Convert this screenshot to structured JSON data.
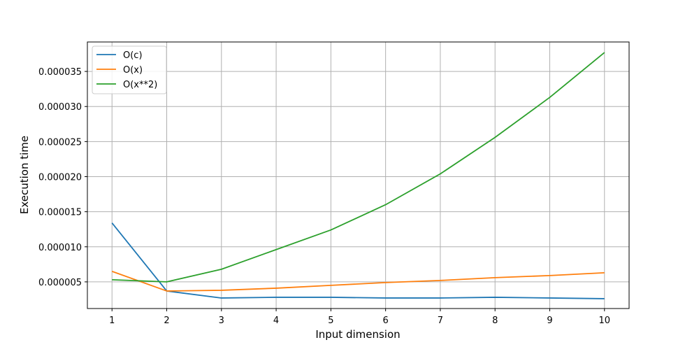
{
  "chart_data": {
    "type": "line",
    "title": "",
    "xlabel": "Input dimension",
    "ylabel": "Execution time",
    "x": [
      1,
      2,
      3,
      4,
      5,
      6,
      7,
      8,
      9,
      10
    ],
    "xticks": [
      "1",
      "2",
      "3",
      "4",
      "5",
      "6",
      "7",
      "8",
      "9",
      "10"
    ],
    "yticks": [
      5e-06,
      1e-05,
      1.5e-05,
      2e-05,
      2.5e-05,
      3e-05,
      3.5e-05
    ],
    "ytick_labels": [
      "0.000005",
      "0.000010",
      "0.000015",
      "0.000020",
      "0.000025",
      "0.000030",
      "0.000035"
    ],
    "xlim": [
      0.55,
      10.45
    ],
    "ylim": [
      1.2e-06,
      3.92e-05
    ],
    "grid": true,
    "legend_position": "top-left",
    "series": [
      {
        "name": "O(c)",
        "color": "#1f77b4",
        "values": [
          1.34e-05,
          3.7e-06,
          2.7e-06,
          2.8e-06,
          2.8e-06,
          2.7e-06,
          2.7e-06,
          2.8e-06,
          2.7e-06,
          2.6e-06
        ]
      },
      {
        "name": "O(x)",
        "color": "#ff7f0e",
        "values": [
          6.5e-06,
          3.7e-06,
          3.8e-06,
          4.1e-06,
          4.5e-06,
          4.9e-06,
          5.2e-06,
          5.6e-06,
          5.9e-06,
          6.3e-06
        ]
      },
      {
        "name": "O(x**2)",
        "color": "#2ca02c",
        "values": [
          5.3e-06,
          5e-06,
          6.8e-06,
          9.6e-06,
          1.24e-05,
          1.6e-05,
          2.04e-05,
          2.56e-05,
          3.13e-05,
          3.77e-05
        ]
      }
    ]
  }
}
